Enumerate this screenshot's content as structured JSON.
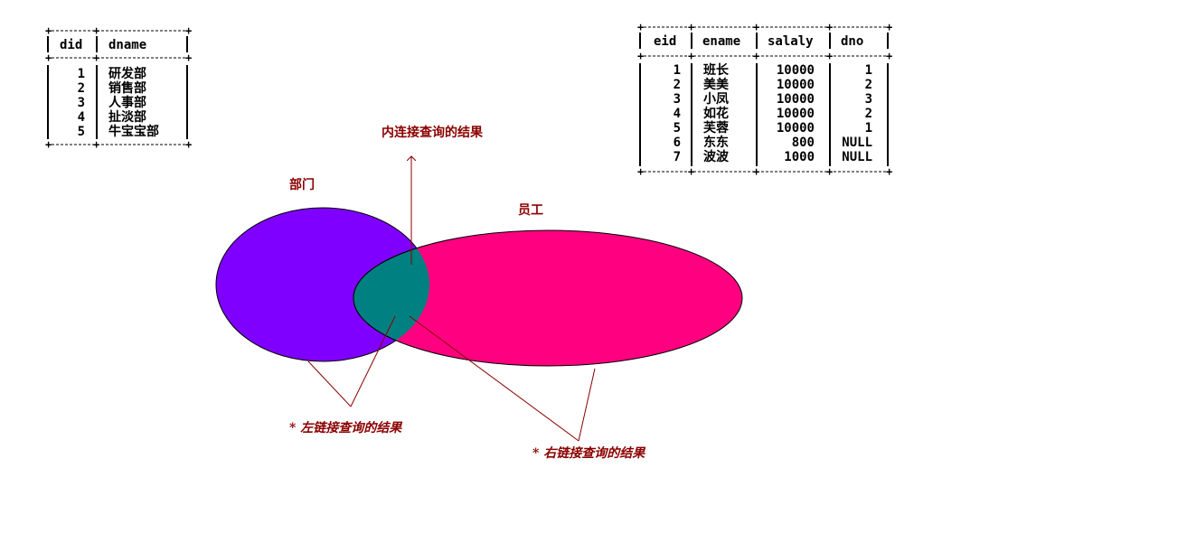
{
  "dept_table": {
    "headers": [
      "did",
      "dname"
    ],
    "rows": [
      [
        "1",
        "研发部"
      ],
      [
        "2",
        "销售部"
      ],
      [
        "3",
        "人事部"
      ],
      [
        "4",
        "扯淡部"
      ],
      [
        "5",
        "牛宝宝部"
      ]
    ]
  },
  "emp_table": {
    "headers": [
      "eid",
      "ename",
      "salaly",
      "dno"
    ],
    "rows": [
      [
        "1",
        "班长",
        "10000",
        "1"
      ],
      [
        "2",
        "美美",
        "10000",
        "2"
      ],
      [
        "3",
        "小凤",
        "10000",
        "3"
      ],
      [
        "4",
        "如花",
        "10000",
        "2"
      ],
      [
        "5",
        "芙蓉",
        "10000",
        "1"
      ],
      [
        "6",
        "东东",
        "800",
        "NULL"
      ],
      [
        "7",
        "波波",
        "1000",
        "NULL"
      ]
    ]
  },
  "diagram": {
    "dept_label": "部门",
    "emp_label": "员工",
    "inner_join_label": "内连接查询的结果",
    "left_join_label": "* 左链接查询的结果",
    "right_join_label": "* 右链接查询的结果",
    "colors": {
      "dept_fill": "#8000ff",
      "emp_fill": "#ff0080",
      "overlap_fill": "#008080",
      "label_color": "#8b0000",
      "arrow_color": "#8b0000"
    }
  }
}
